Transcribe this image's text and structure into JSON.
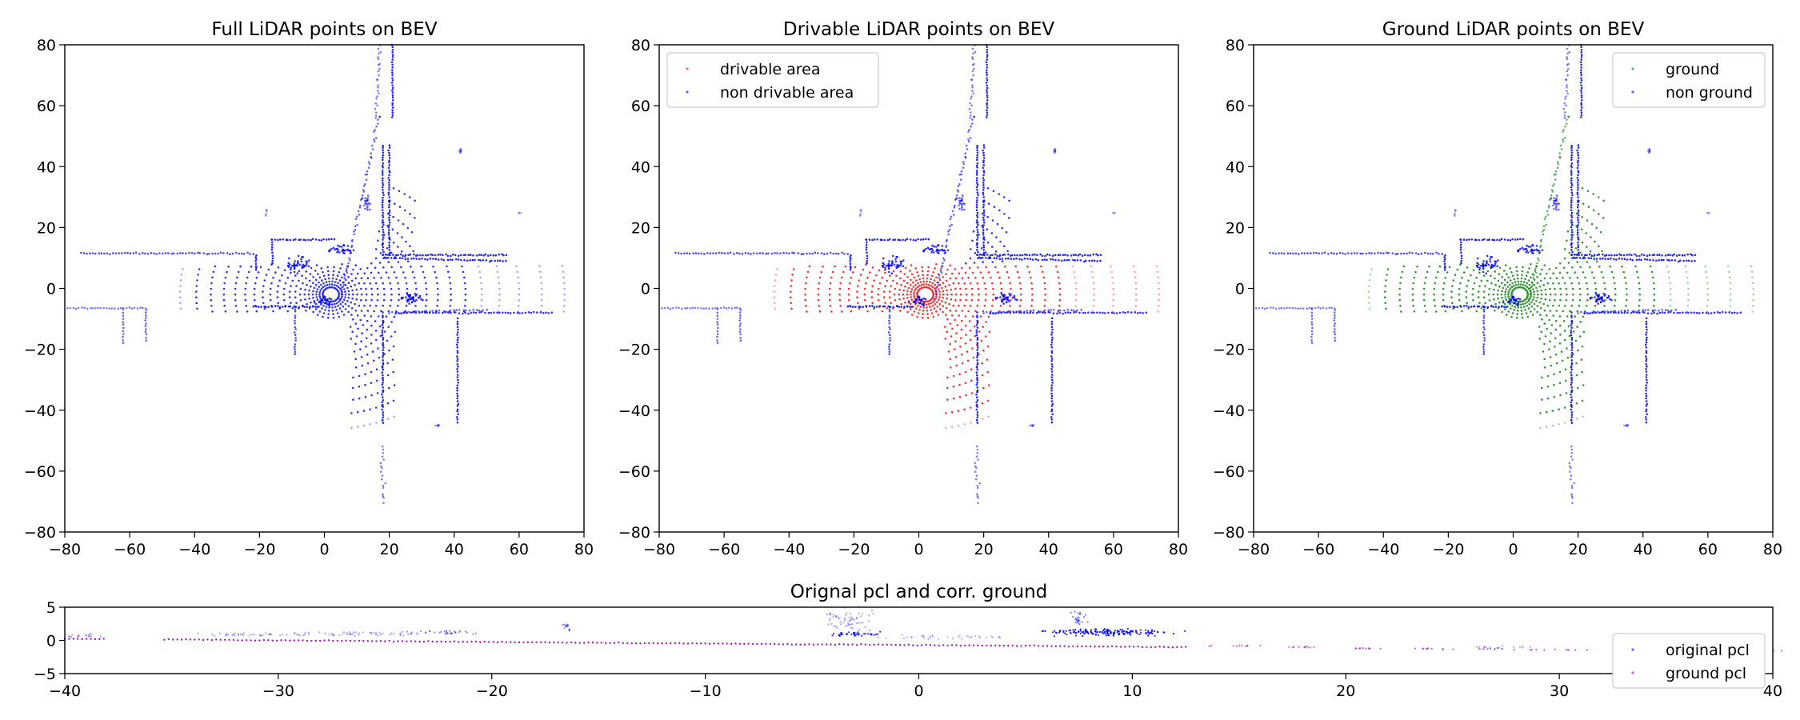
{
  "colors": {
    "blue": "#0000ff",
    "red": "#ff0000",
    "green": "#008000",
    "purple": "#9900cc",
    "axis": "#000000"
  },
  "chart_data": [
    {
      "type": "scatter",
      "title": "Full LiDAR points on BEV",
      "xlim": [
        -80,
        80
      ],
      "ylim": [
        -80,
        80
      ],
      "xticks": [
        -80,
        -60,
        -40,
        -20,
        0,
        20,
        40,
        60,
        80
      ],
      "yticks": [
        -80,
        -60,
        -40,
        -20,
        0,
        20,
        40,
        60,
        80
      ],
      "legend": null,
      "series": [
        {
          "color": "blue",
          "description_points": "full point cloud"
        }
      ]
    },
    {
      "type": "scatter",
      "title": "Drivable LiDAR points on BEV",
      "xlim": [
        -80,
        80
      ],
      "ylim": [
        -80,
        80
      ],
      "xticks": [
        -80,
        -60,
        -40,
        -20,
        0,
        20,
        40,
        60,
        80
      ],
      "yticks": [
        -80,
        -60,
        -40,
        -20,
        0,
        20,
        40,
        60,
        80
      ],
      "legend": {
        "position": "upper-left",
        "entries": [
          "drivable area",
          "non drivable area"
        ]
      },
      "series": [
        {
          "name": "drivable area",
          "color": "red"
        },
        {
          "name": "non drivable area",
          "color": "blue"
        }
      ]
    },
    {
      "type": "scatter",
      "title": "Ground LiDAR points on BEV",
      "xlim": [
        -80,
        80
      ],
      "ylim": [
        -80,
        80
      ],
      "xticks": [
        -80,
        -60,
        -40,
        -20,
        0,
        20,
        40,
        60,
        80
      ],
      "yticks": [
        -80,
        -60,
        -40,
        -20,
        0,
        20,
        40,
        60,
        80
      ],
      "legend": {
        "position": "upper-right",
        "entries": [
          "ground",
          "non ground"
        ]
      },
      "series": [
        {
          "name": "ground",
          "color": "green"
        },
        {
          "name": "non ground",
          "color": "blue"
        }
      ]
    },
    {
      "type": "scatter",
      "title": "Orignal pcl and corr. ground",
      "xlim": [
        -40,
        40
      ],
      "ylim": [
        -5,
        5
      ],
      "xticks": [
        -40,
        -30,
        -20,
        -10,
        0,
        10,
        20,
        30,
        40
      ],
      "yticks": [
        -5,
        0,
        5
      ],
      "legend": {
        "position": "lower-right",
        "entries": [
          "original pcl",
          "ground pcl"
        ]
      },
      "series": [
        {
          "name": "original pcl",
          "color": "blue"
        },
        {
          "name": "ground pcl",
          "color": "purple"
        }
      ]
    }
  ]
}
